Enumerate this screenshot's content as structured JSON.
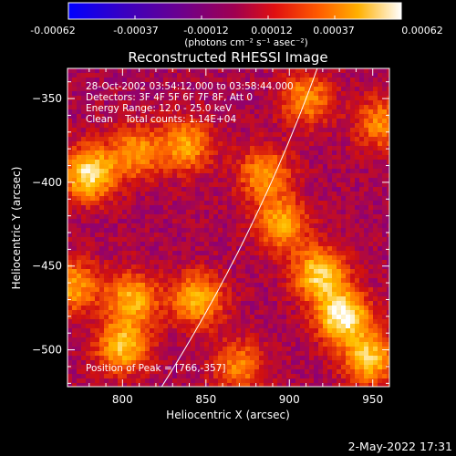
{
  "colorbar": {
    "tick_labels": [
      "-0.00062",
      "-0.00037",
      "-0.00012",
      "0.00012",
      "0.00037",
      "0.00062"
    ],
    "unit_label": "(photons cm⁻² s⁻¹ asec⁻²)"
  },
  "chart_data": {
    "type": "heatmap",
    "title": "Reconstructed RHESSI Image",
    "xlabel": "Heliocentric X (arcsec)",
    "ylabel": "Heliocentric Y (arcsec)",
    "xlim": [
      767,
      960
    ],
    "ylim": [
      -522,
      -332
    ],
    "x_ticks": [
      800,
      850,
      900,
      950
    ],
    "y_ticks": [
      -350,
      -400,
      -450,
      -500
    ],
    "value_range": [
      -0.00062,
      0.00062
    ],
    "colormap": [
      "#0000ff",
      "#4b0096",
      "#8a0078",
      "#d01010",
      "#ff6a00",
      "#ffc000",
      "#ffffff"
    ],
    "limb_color": "#ffffff",
    "peak_position": [
      766,
      -357
    ],
    "bright_regions": [
      {
        "x": 780,
        "y": -395,
        "value": 0.00055
      },
      {
        "x": 932,
        "y": -480,
        "value": 0.0006
      },
      {
        "x": 918,
        "y": -455,
        "value": 0.00048
      },
      {
        "x": 948,
        "y": -505,
        "value": 0.00045
      },
      {
        "x": 845,
        "y": -470,
        "value": 0.0004
      },
      {
        "x": 806,
        "y": -470,
        "value": 0.00038
      },
      {
        "x": 800,
        "y": -498,
        "value": 0.00042
      },
      {
        "x": 838,
        "y": -378,
        "value": 0.00035
      },
      {
        "x": 808,
        "y": -382,
        "value": 0.0003
      },
      {
        "x": 885,
        "y": -395,
        "value": 0.00032
      },
      {
        "x": 895,
        "y": -425,
        "value": 0.00036
      },
      {
        "x": 910,
        "y": -350,
        "value": 0.0003
      },
      {
        "x": 955,
        "y": -365,
        "value": 0.00028
      },
      {
        "x": 870,
        "y": -510,
        "value": 0.00026
      },
      {
        "x": 770,
        "y": -462,
        "value": 0.00034
      }
    ],
    "annotations": [
      "28-Oct-2002 03:54:12.000 to 03:58:44.000",
      "Detectors: 3F 4F 5F 6F 7F 8F, Att 0",
      "Energy Range: 12.0 - 25.0 keV",
      "Clean    Total counts: 1.14E+04"
    ],
    "peak_label": "Position of Peak = [766,-357]"
  },
  "timestamp": "2-May-2022 17:31"
}
